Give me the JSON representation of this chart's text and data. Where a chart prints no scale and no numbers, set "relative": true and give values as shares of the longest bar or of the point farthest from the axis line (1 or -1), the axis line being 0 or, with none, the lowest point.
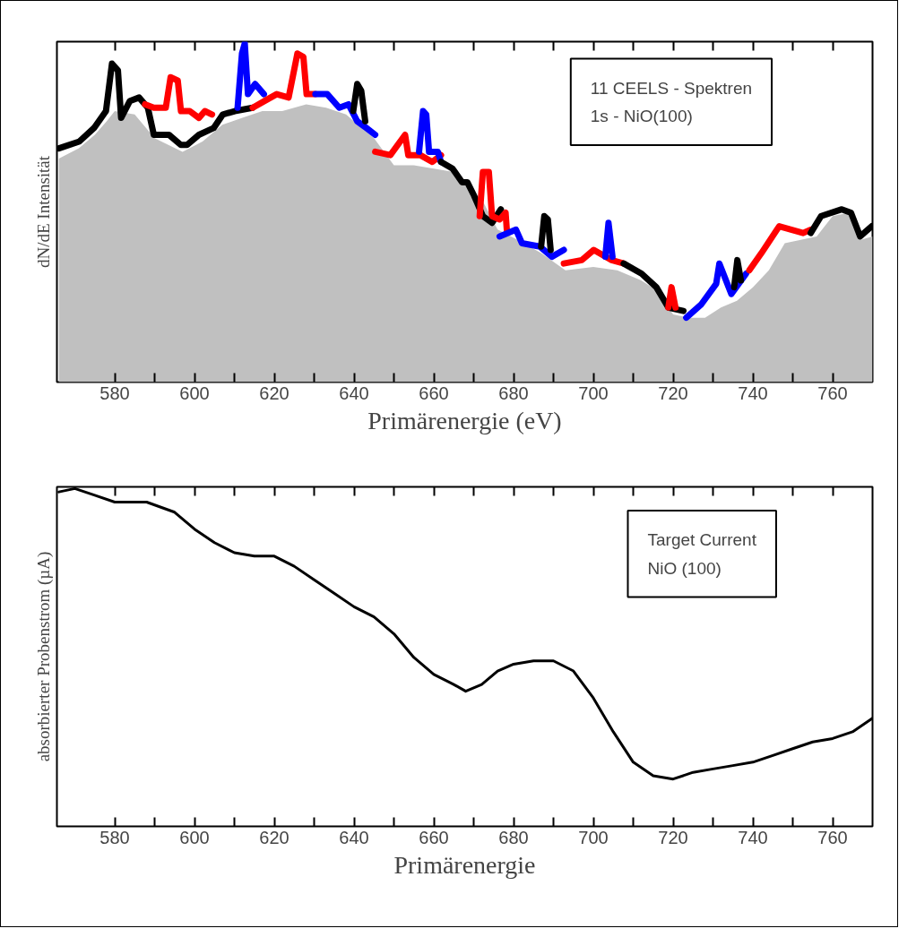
{
  "chart_data": [
    {
      "type": "area",
      "relative": true,
      "xlabel": "Primärenergie (eV)",
      "ylabel": "dN/dE Intensität",
      "annotations": [
        "11 CEELS - Spektren",
        "1s - NiO(100)"
      ],
      "tick_labels": "x",
      "grid": false,
      "xlim": [
        565.5,
        770
      ],
      "xticks": [
        580,
        {
          "value": 590,
          "label": null
        },
        600,
        {
          "value": 610,
          "label": null
        },
        620,
        {
          "value": 630,
          "label": null
        },
        640,
        {
          "value": 650,
          "label": null
        },
        660,
        {
          "value": 670,
          "label": null
        },
        680,
        {
          "value": 690,
          "label": null
        },
        700,
        {
          "value": 710,
          "label": null
        },
        720,
        {
          "value": 730,
          "label": null
        },
        740,
        {
          "value": 750,
          "label": null
        },
        760
      ],
      "series": [
        {
          "type": "area",
          "color": "#c0c0c0",
          "x": [
            566,
            571,
            575,
            578,
            580,
            585,
            590,
            597,
            602,
            607,
            612,
            617,
            622,
            628,
            633,
            638,
            641,
            645,
            650,
            655,
            660,
            665,
            668,
            672,
            676,
            681,
            687,
            693,
            700,
            706,
            712,
            716,
            720,
            724,
            728,
            732,
            736,
            740,
            744,
            748,
            752,
            756,
            760,
            764,
            767,
            770
          ],
          "values": [
            0.66,
            0.69,
            0.73,
            0.77,
            0.8,
            0.79,
            0.72,
            0.68,
            0.71,
            0.76,
            0.78,
            0.8,
            0.8,
            0.82,
            0.81,
            0.79,
            0.76,
            0.72,
            0.64,
            0.64,
            0.63,
            0.62,
            0.58,
            0.54,
            0.45,
            0.42,
            0.38,
            0.33,
            0.34,
            0.33,
            0.3,
            0.27,
            0.2,
            0.19,
            0.19,
            0.22,
            0.24,
            0.28,
            0.33,
            0.41,
            0.42,
            0.43,
            0.49,
            0.5,
            0.42,
            0.43
          ]
        },
        {
          "type": "line",
          "color": "#000000",
          "x": [
            566,
            571.1,
            574.8,
            577.8,
            579.3,
            580.8,
            581.6,
            583.8,
            586.1,
            588.3,
            589.8,
            593.6,
            596.6,
            598.1,
            601.1,
            604.8,
            607.1,
            610.1,
            614.6
          ],
          "values": [
            0.69,
            0.71,
            0.75,
            0.8,
            0.94,
            0.92,
            0.78,
            0.83,
            0.84,
            0.81,
            0.73,
            0.73,
            0.7,
            0.7,
            0.73,
            0.75,
            0.79,
            0.8,
            0.81
          ]
        },
        {
          "type": "line",
          "color": "#ff0000",
          "x": [
            587.6,
            589.8,
            592.8,
            594,
            595.8,
            596.6,
            598.8,
            601.1,
            602.6,
            604.4
          ],
          "values": [
            0.82,
            0.81,
            0.81,
            0.9,
            0.89,
            0.8,
            0.8,
            0.78,
            0.8,
            0.79
          ]
        },
        {
          "type": "line",
          "color": "#0000ff",
          "x": [
            610.8,
            611.9,
            612.6,
            613.4,
            615.2,
            617.4
          ],
          "values": [
            0.81,
            0.97,
            1.0,
            0.85,
            0.88,
            0.85
          ]
        },
        {
          "type": "line",
          "color": "#ff0000",
          "x": [
            614.6,
            617.6,
            620.6,
            623.6,
            625.8,
            627.3,
            628.1,
            630.3
          ],
          "values": [
            0.81,
            0.83,
            0.85,
            0.84,
            0.97,
            0.96,
            0.85,
            0.85
          ]
        },
        {
          "type": "line",
          "color": "#0000ff",
          "x": [
            630.3,
            633.3,
            636.3,
            638.6,
            640.8,
            643.1,
            645.3
          ],
          "values": [
            0.85,
            0.85,
            0.81,
            0.82,
            0.77,
            0.75,
            0.73
          ]
        },
        {
          "type": "line",
          "color": "#000000",
          "x": [
            639.8,
            640.8,
            641.8,
            642.8
          ],
          "values": [
            0.8,
            0.88,
            0.86,
            0.77
          ]
        },
        {
          "type": "line",
          "color": "#ff0000",
          "x": [
            645.3,
            649.1,
            652.8,
            653.6,
            656.6,
            659.6,
            661.8
          ],
          "values": [
            0.68,
            0.67,
            0.73,
            0.67,
            0.67,
            0.65,
            0.67
          ]
        },
        {
          "type": "line",
          "color": "#0000ff",
          "x": [
            656.3,
            657.3,
            658.1,
            658.8,
            661,
            661.8
          ],
          "values": [
            0.68,
            0.8,
            0.79,
            0.68,
            0.68,
            0.65
          ]
        },
        {
          "type": "line",
          "color": "#000000",
          "x": [
            661.8,
            664.7,
            667.1,
            668.4,
            670.1,
            672.3,
            674.6,
            676.8
          ],
          "values": [
            0.65,
            0.63,
            0.59,
            0.59,
            0.55,
            0.49,
            0.47,
            0.51
          ]
        },
        {
          "type": "line",
          "color": "#ff0000",
          "x": [
            671.5,
            672.3,
            673.8,
            674.6,
            676.5,
            678,
            678.3
          ],
          "values": [
            0.49,
            0.62,
            0.62,
            0.49,
            0.48,
            0.5,
            0.45
          ]
        },
        {
          "type": "line",
          "color": "#0000ff",
          "x": [
            676.5,
            680.6,
            682.1,
            686.6,
            689.6,
            692.6
          ],
          "values": [
            0.43,
            0.45,
            0.41,
            0.4,
            0.37,
            0.39
          ]
        },
        {
          "type": "line",
          "color": "#000000",
          "x": [
            686.9,
            687.7,
            688.6,
            689.3
          ],
          "values": [
            0.4,
            0.49,
            0.48,
            0.39
          ]
        },
        {
          "type": "line",
          "color": "#ff0000",
          "x": [
            692.6,
            697.1,
            700.1,
            704.6,
            707.6
          ],
          "values": [
            0.35,
            0.36,
            0.39,
            0.36,
            0.35
          ]
        },
        {
          "type": "line",
          "color": "#0000ff",
          "x": [
            703,
            703.8,
            704.8
          ],
          "values": [
            0.37,
            0.47,
            0.37
          ]
        },
        {
          "type": "line",
          "color": "#000000",
          "x": [
            707.6,
            712.1,
            715.8,
            718.8,
            722.6
          ],
          "values": [
            0.35,
            0.32,
            0.28,
            0.22,
            0.21
          ]
        },
        {
          "type": "line",
          "color": "#ff0000",
          "x": [
            718.8,
            719.6,
            720.6
          ],
          "values": [
            0.22,
            0.28,
            0.22
          ]
        },
        {
          "type": "line",
          "color": "#0000ff",
          "x": [
            723.3,
            727.1,
            730.8,
            731.6,
            734.6,
            738.3
          ],
          "values": [
            0.19,
            0.23,
            0.29,
            0.35,
            0.26,
            0.32
          ]
        },
        {
          "type": "line",
          "color": "#000000",
          "x": [
            735.3,
            736.1,
            737
          ],
          "values": [
            0.28,
            0.36,
            0.3
          ]
        },
        {
          "type": "line",
          "color": "#ff0000",
          "x": [
            739.1,
            742.1,
            746.6,
            749.6,
            752.6,
            754.5
          ],
          "values": [
            0.33,
            0.38,
            0.46,
            0.45,
            0.44,
            0.45
          ]
        },
        {
          "type": "line",
          "color": "#000000",
          "x": [
            754.5,
            757.1,
            762.3,
            764.6,
            766.9,
            769.8
          ],
          "values": [
            0.44,
            0.49,
            0.51,
            0.5,
            0.43,
            0.46
          ]
        }
      ]
    },
    {
      "type": "line",
      "relative": true,
      "xlabel": "Primärenergie",
      "ylabel": "absorbierter Probenstrom (µA)",
      "annotations": [
        "Target Current",
        "NiO (100)"
      ],
      "tick_labels": "x",
      "grid": false,
      "xlim": [
        565.5,
        770
      ],
      "xticks": [
        580,
        {
          "value": 590,
          "label": null
        },
        600,
        {
          "value": 610,
          "label": null
        },
        620,
        {
          "value": 630,
          "label": null
        },
        640,
        {
          "value": 650,
          "label": null
        },
        660,
        {
          "value": 670,
          "label": null
        },
        680,
        {
          "value": 690,
          "label": null
        },
        700,
        {
          "value": 710,
          "label": null
        },
        720,
        {
          "value": 730,
          "label": null
        },
        740,
        {
          "value": 750,
          "label": null
        },
        760
      ],
      "series": [
        {
          "color": "#000000",
          "x": [
            566,
            570,
            575,
            580,
            588,
            595,
            600,
            605,
            610,
            615,
            620,
            625,
            630,
            635,
            640,
            645,
            650,
            655,
            660,
            665,
            668,
            672,
            676,
            680,
            685,
            690,
            695,
            700,
            705,
            710,
            715,
            720,
            725,
            730,
            735,
            740,
            745,
            750,
            755,
            760,
            765,
            770
          ],
          "values": [
            0.99,
            1.0,
            0.98,
            0.96,
            0.96,
            0.93,
            0.88,
            0.84,
            0.81,
            0.8,
            0.8,
            0.77,
            0.73,
            0.69,
            0.65,
            0.62,
            0.57,
            0.5,
            0.45,
            0.42,
            0.4,
            0.42,
            0.46,
            0.48,
            0.49,
            0.49,
            0.46,
            0.38,
            0.28,
            0.19,
            0.15,
            0.14,
            0.16,
            0.17,
            0.18,
            0.19,
            0.21,
            0.23,
            0.25,
            0.26,
            0.28,
            0.32
          ]
        }
      ]
    }
  ]
}
